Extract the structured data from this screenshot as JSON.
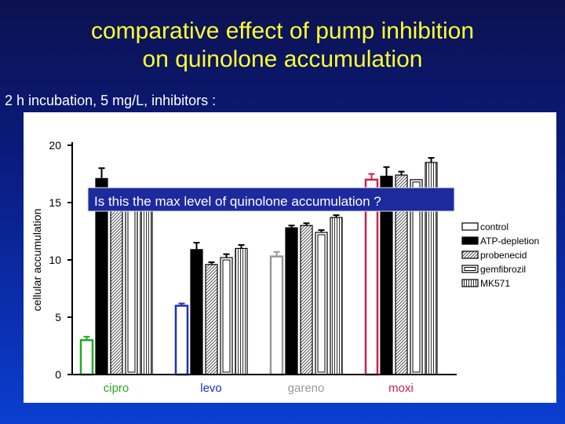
{
  "title_line1": "comparative effect of pump inhibition",
  "title_line2": "on quinolone accumulation",
  "subtitle": "2 h incubation, 5 mg/L, inhibitors :",
  "annotation": "Is this the max level of quinolone accumulation ?",
  "chart_data": {
    "type": "bar",
    "title": "",
    "xlabel": "",
    "ylabel": "cellular accumulation",
    "ylim": [
      0,
      20
    ],
    "yticks": [
      0,
      5,
      10,
      15,
      20
    ],
    "categories": [
      "cipro",
      "levo",
      "gareno",
      "moxi"
    ],
    "category_colors": [
      "#22aa22",
      "#1f2fbf",
      "#999999",
      "#cc2244"
    ],
    "series": [
      {
        "name": "control",
        "values": [
          3.0,
          6.0,
          10.3,
          17.0
        ],
        "errors": [
          0.3,
          0.2,
          0.4,
          0.5
        ]
      },
      {
        "name": "ATP-depletion",
        "values": [
          17.1,
          10.9,
          12.8,
          17.3
        ],
        "errors": [
          0.9,
          0.6,
          0.2,
          0.8
        ]
      },
      {
        "name": "probenecid",
        "values": [
          15.5,
          9.6,
          13.0,
          17.4
        ],
        "errors": [
          0.0,
          0.2,
          0.2,
          0.3
        ]
      },
      {
        "name": "gemfibrozil",
        "values": [
          15.5,
          10.2,
          12.4,
          17.0
        ],
        "errors": [
          0.0,
          0.3,
          0.2,
          0.0
        ]
      },
      {
        "name": "MK571",
        "values": [
          15.5,
          11.0,
          13.7,
          18.5
        ],
        "errors": [
          0.0,
          0.3,
          0.2,
          0.4
        ]
      }
    ],
    "legend_position": "right",
    "grid": false
  }
}
